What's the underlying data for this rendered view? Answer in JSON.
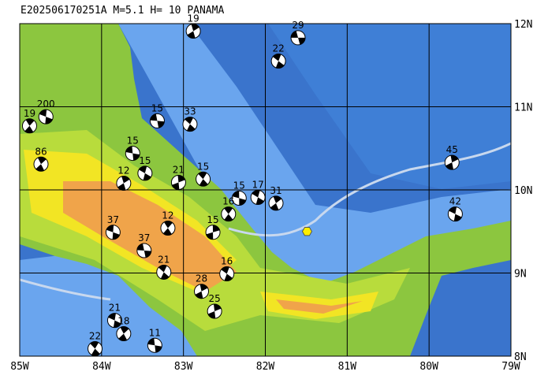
{
  "chart_data": {
    "type": "map",
    "title": "E202506170251A M=5.1 H= 10 PANAMA",
    "xlim": [
      -85,
      -79
    ],
    "ylim": [
      8,
      12
    ],
    "xticks": [
      {
        "value": -85,
        "label": "85W"
      },
      {
        "value": -84,
        "label": "84W"
      },
      {
        "value": -83,
        "label": "83W"
      },
      {
        "value": -82,
        "label": "82W"
      },
      {
        "value": -81,
        "label": "81W"
      },
      {
        "value": -80,
        "label": "80W"
      },
      {
        "value": -79,
        "label": "79W"
      }
    ],
    "yticks": [
      {
        "value": 8,
        "label": "8N"
      },
      {
        "value": 9,
        "label": "9N"
      },
      {
        "value": 10,
        "label": "10N"
      },
      {
        "value": 11,
        "label": "11N"
      },
      {
        "value": 12,
        "label": "12N"
      }
    ],
    "grid": true,
    "epicenter": {
      "lon": -81.49,
      "lat": 9.5,
      "color": "#ffee00"
    },
    "events": {
      "lon": [
        -81.6,
        -81.84,
        -82.88,
        -84.68,
        -84.88,
        -83.32,
        -82.92,
        -79.72,
        -79.68,
        -84.74,
        -83.62,
        -82.76,
        -83.06,
        -82.09,
        -81.87,
        -82.32,
        -82.45,
        -82.64,
        -82.47,
        -83.73,
        -83.86,
        -83.19,
        -83.48,
        -83.24,
        -82.78,
        -83.84,
        -83.73,
        -83.35,
        -84.08,
        -82.62,
        -83.47
      ],
      "lat": [
        11.83,
        11.55,
        11.91,
        10.88,
        10.77,
        10.83,
        10.79,
        10.33,
        9.71,
        10.31,
        10.44,
        10.13,
        10.09,
        9.91,
        9.84,
        9.9,
        9.71,
        9.49,
        8.99,
        10.08,
        9.49,
        9.54,
        9.27,
        9.01,
        8.78,
        8.43,
        8.27,
        8.13,
        8.09,
        8.54,
        10.2
      ],
      "depth": [
        29,
        22,
        19,
        200,
        19,
        15,
        33,
        45,
        42,
        86,
        15,
        15,
        21,
        17,
        31,
        15,
        16,
        15,
        16,
        12,
        37,
        12,
        37,
        21,
        28,
        21,
        18,
        11,
        22,
        25,
        15
      ]
    }
  }
}
